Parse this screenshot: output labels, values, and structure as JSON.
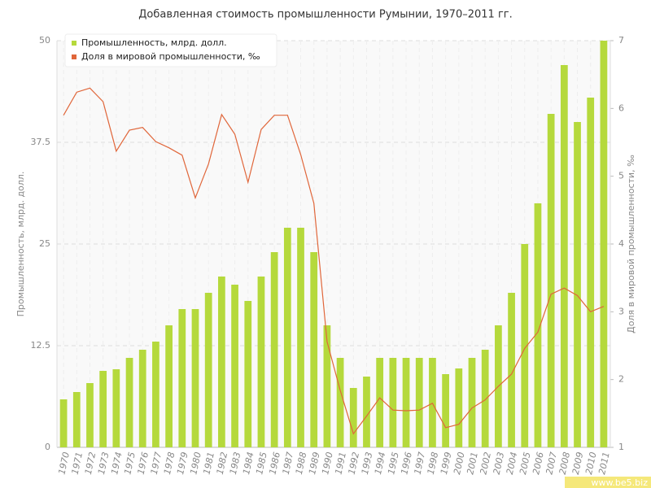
{
  "chart_data": {
    "type": "bar-line",
    "title": "Добавленная стоимость промышленности Румынии, 1970–2011 гг.",
    "ylabel": "Промышленность, млрд. долл.",
    "y2label": "Доля в мировой промышленности, ‰",
    "watermark": "www.be5.biz",
    "legend": "top-left",
    "grid": true,
    "categories": [
      "1970",
      "1971",
      "1972",
      "1973",
      "1974",
      "1975",
      "1976",
      "1977",
      "1978",
      "1979",
      "1980",
      "1981",
      "1982",
      "1983",
      "1984",
      "1985",
      "1986",
      "1987",
      "1988",
      "1989",
      "1990",
      "1991",
      "1992",
      "1993",
      "1994",
      "1995",
      "1996",
      "1997",
      "1998",
      "1999",
      "2000",
      "2001",
      "2002",
      "2003",
      "2004",
      "2005",
      "2006",
      "2007",
      "2008",
      "2009",
      "2010",
      "2011"
    ],
    "series": [
      {
        "name": "Промышленность, млрд. долл.",
        "type": "bar",
        "color": "#b5d93c",
        "values": [
          5.9,
          6.8,
          7.9,
          9.4,
          9.6,
          11,
          12,
          13,
          15,
          17,
          17,
          19,
          21,
          20,
          18,
          21,
          24,
          27,
          27,
          24,
          15,
          11,
          7.3,
          8.7,
          11,
          11,
          11,
          11,
          11,
          9,
          9.7,
          11,
          12,
          15,
          19,
          25,
          30,
          41,
          47,
          40,
          43,
          50
        ]
      },
      {
        "name": "Доля в мировой промышленности, ‰",
        "type": "line",
        "axis": "y2",
        "color": "#e0663a",
        "values": [
          5.9,
          6.24,
          6.3,
          6.1,
          5.37,
          5.68,
          5.72,
          5.51,
          5.42,
          5.31,
          4.68,
          5.18,
          5.91,
          5.62,
          4.91,
          5.69,
          5.9,
          5.9,
          5.32,
          4.6,
          2.56,
          1.84,
          1.2,
          1.46,
          1.73,
          1.55,
          1.54,
          1.55,
          1.65,
          1.29,
          1.34,
          1.58,
          1.7,
          1.9,
          2.08,
          2.46,
          2.7,
          3.26,
          3.35,
          3.24,
          3.0,
          3.08
        ]
      }
    ],
    "ylim": [
      0,
      50
    ],
    "yticks": [
      0,
      12.5,
      25,
      37.5,
      50
    ],
    "y2lim": [
      1,
      7
    ],
    "y2ticks": [
      1,
      2,
      3,
      4,
      5,
      6,
      7
    ]
  }
}
